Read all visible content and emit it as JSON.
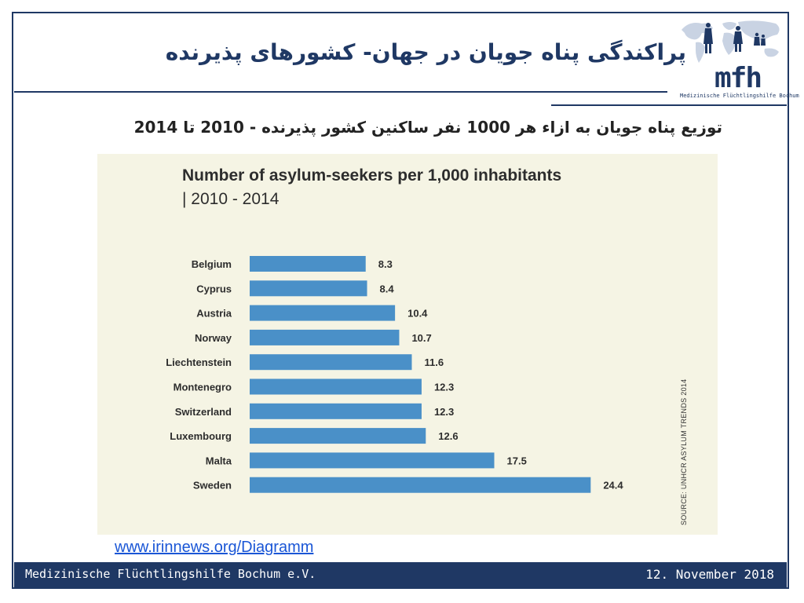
{
  "slide": {
    "title": "پراکندگی پناه جویان در جهان- کشورهای پذیرنده",
    "subtitle": "توزیع پناه جویان به ازاء هر 1000 نفر ساکنین کشور پذیرنده - 2010 تا 2014",
    "link_text": "www.irinnews.org/Diagramm",
    "logo_text": "mfh",
    "logo_subtext": "Medizinische Flüchtlingshilfe Bochum",
    "footer_left": "Medizinische Flüchtlingshilfe Bochum e.V.",
    "footer_right": "12. November 2018",
    "accent_color": "#1f3864"
  },
  "chart_data": {
    "type": "bar",
    "orientation": "horizontal",
    "title": "Number of asylum-seekers per 1,000 inhabitants",
    "subtitle": "| 2010 - 2014",
    "categories": [
      "Belgium",
      "Cyprus",
      "Austria",
      "Norway",
      "Liechtenstein",
      "Montenegro",
      "Switzerland",
      "Luxembourg",
      "Malta",
      "Sweden"
    ],
    "values": [
      8.3,
      8.4,
      10.4,
      10.7,
      11.6,
      12.3,
      12.3,
      12.6,
      17.5,
      24.4
    ],
    "value_labels": [
      "8.3",
      "8.4",
      "10.4",
      "10.7",
      "11.6",
      "12.3",
      "12.3",
      "12.6",
      "17.5",
      "24.4"
    ],
    "source": "SOURCE: UNHCR ASYLUM TRENDS 2014",
    "bar_color": "#4a90c8",
    "background_color": "#f5f4e4",
    "grid": false
  }
}
